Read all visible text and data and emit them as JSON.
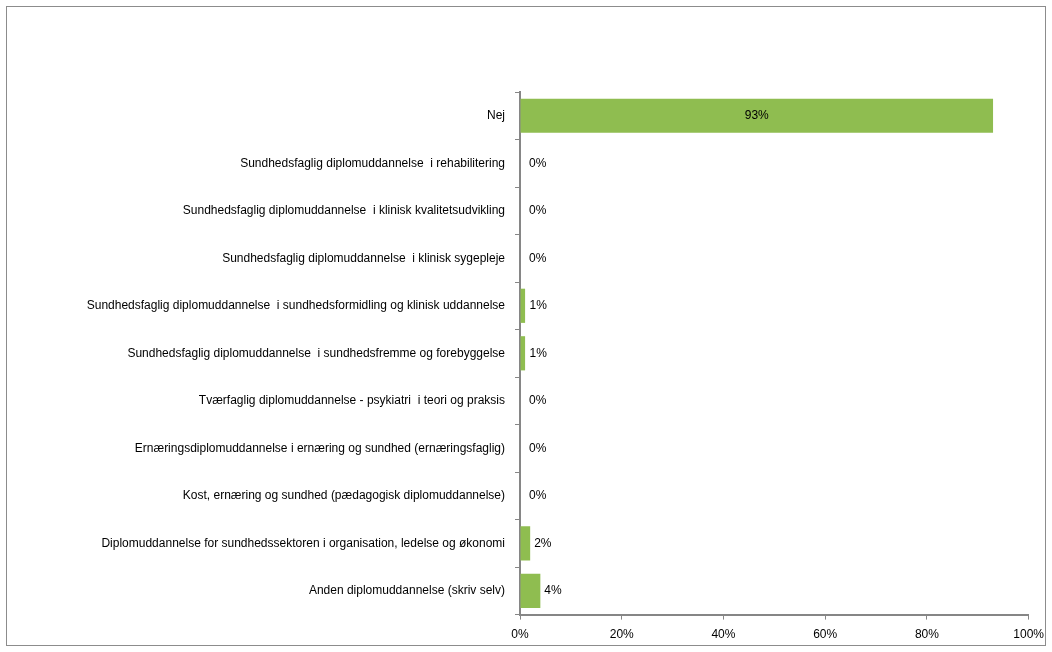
{
  "chart_data": {
    "type": "bar",
    "orientation": "horizontal",
    "categories": [
      "Nej",
      "Sundhedsfaglig diplomuddannelse  i rehabilitering",
      "Sundhedsfaglig diplomuddannelse  i klinisk kvalitetsudvikling",
      "Sundhedsfaglig diplomuddannelse  i klinisk sygepleje",
      "Sundhedsfaglig diplomuddannelse  i sundhedsformidling og klinisk uddannelse",
      "Sundhedsfaglig diplomuddannelse  i sundhedsfremme og forebyggelse",
      "Tværfaglig diplomuddannelse - psykiatri  i teori og praksis",
      "Ernæringsdiplomuddannelse i ernæring og sundhed (ernæringsfaglig)",
      "Kost, ernæring og sundhed (pædagogisk diplomuddannelse)",
      "Diplomuddannelse for sundhedssektoren i organisation, ledelse og økonomi",
      "Anden diplomuddannelse (skriv selv)"
    ],
    "values": [
      93,
      0,
      0,
      0,
      1,
      1,
      0,
      0,
      0,
      2,
      4
    ],
    "value_labels": [
      "93%",
      "0%",
      "0%",
      "0%",
      "1%",
      "1%",
      "0%",
      "0%",
      "0%",
      "2%",
      "4%"
    ],
    "color": "#8fbd50",
    "xlim": [
      0,
      100
    ],
    "xticks": [
      {
        "value": 0,
        "label": "0%"
      },
      {
        "value": 20,
        "label": "20%"
      },
      {
        "value": 40,
        "label": "40%"
      },
      {
        "value": 60,
        "label": "60%"
      },
      {
        "value": 80,
        "label": "80%"
      },
      {
        "value": 100,
        "label": "100%"
      }
    ],
    "grid": false,
    "legend": false
  }
}
